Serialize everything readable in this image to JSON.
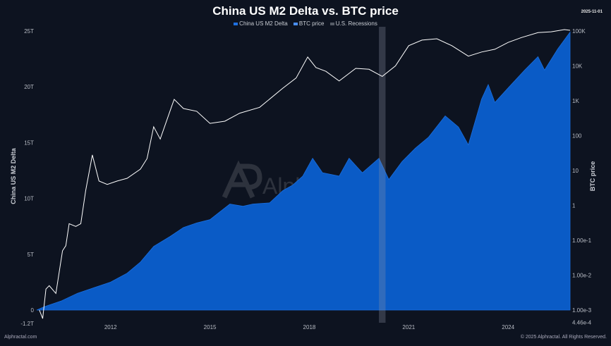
{
  "chart_data": {
    "type": "area",
    "title": "China US M2 Delta vs. BTC price",
    "date_stamp": "2025-11-01",
    "legend": [
      "China US M2 Delta",
      "BTC price",
      "U.S. Recessions"
    ],
    "legend_position": "top-center",
    "ylabel_left": "China US M2 Delta",
    "ylabel_right": "BTC price",
    "x_ticks": [
      "2012",
      "2015",
      "2018",
      "2021",
      "2024"
    ],
    "x_range": [
      2009.77,
      2025.87
    ],
    "y_left_ticks": [
      "25T",
      "20T",
      "15T",
      "10T",
      "5T",
      "0",
      "-1.2T"
    ],
    "y_left_range": [
      -1.2,
      25
    ],
    "y_right_ticks": [
      "100K",
      "10K",
      "1K",
      "100",
      "10",
      "1",
      "1.00e-1",
      "1.00e-2",
      "1.00e-3",
      "4.46e-4"
    ],
    "y_right_range": [
      0.000446,
      100000
    ],
    "y_right_scale": "log",
    "grid": false,
    "colors": {
      "m2": "#0a5bc6",
      "btc": "#ffffff",
      "recession": "#3a404c",
      "background": "#0d1320"
    },
    "recessions": [
      [
        2020.1,
        2020.3
      ]
    ],
    "series": [
      {
        "name": "China US M2 Delta",
        "unit": "T",
        "x": [
          2009.77,
          2010.0,
          2010.5,
          2011.0,
          2011.5,
          2012.0,
          2012.5,
          2012.9,
          2013.3,
          2013.8,
          2014.2,
          2014.6,
          2015.0,
          2015.3,
          2015.6,
          2016.0,
          2016.3,
          2016.8,
          2017.2,
          2017.5,
          2017.8,
          2018.1,
          2018.4,
          2018.9,
          2019.2,
          2019.6,
          2020.1,
          2020.4,
          2020.8,
          2021.2,
          2021.6,
          2022.1,
          2022.5,
          2022.8,
          2023.2,
          2023.4,
          2023.6,
          2024.0,
          2024.5,
          2024.9,
          2025.1,
          2025.5,
          2025.87
        ],
        "values": [
          0,
          0.3,
          0.8,
          1.5,
          2.0,
          2.5,
          3.3,
          4.3,
          5.7,
          6.6,
          7.4,
          7.8,
          8.1,
          8.8,
          9.5,
          9.3,
          9.5,
          9.6,
          10.7,
          11.2,
          12.0,
          13.6,
          12.3,
          12.0,
          13.6,
          12.3,
          13.6,
          11.7,
          13.3,
          14.5,
          15.5,
          17.4,
          16.4,
          14.8,
          18.9,
          20.2,
          18.6,
          19.9,
          21.5,
          22.7,
          21.5,
          23.4,
          24.9
        ]
      },
      {
        "name": "BTC price",
        "unit": "USD",
        "x": [
          2009.85,
          2009.95,
          2010.05,
          2010.15,
          2010.35,
          2010.55,
          2010.65,
          2010.75,
          2010.95,
          2011.1,
          2011.25,
          2011.45,
          2011.65,
          2011.9,
          2012.2,
          2012.5,
          2012.9,
          2013.1,
          2013.3,
          2013.5,
          2013.85,
          2013.92,
          2014.2,
          2014.6,
          2015.0,
          2015.45,
          2015.9,
          2016.5,
          2017.2,
          2017.6,
          2017.95,
          2018.2,
          2018.5,
          2018.9,
          2019.4,
          2019.8,
          2020.2,
          2020.6,
          2021.0,
          2021.4,
          2021.85,
          2022.3,
          2022.8,
          2023.2,
          2023.6,
          2024.0,
          2024.4,
          2024.9,
          2025.3,
          2025.7,
          2025.87
        ],
        "values": [
          0.001,
          0.00057,
          0.004,
          0.005,
          0.003,
          0.05,
          0.07,
          0.3,
          0.25,
          0.3,
          2.7,
          28,
          5,
          4,
          5,
          6,
          11,
          22,
          180,
          80,
          720,
          1100,
          600,
          500,
          225,
          260,
          440,
          650,
          2300,
          4500,
          18000,
          9000,
          7000,
          3700,
          8500,
          8000,
          5000,
          10000,
          38000,
          55000,
          60000,
          38000,
          19000,
          25000,
          30000,
          47000,
          65000,
          90000,
          95000,
          110000,
          105000
        ]
      }
    ],
    "watermark": "Alphractal"
  },
  "footer": {
    "left": "Alphractal.com",
    "right": "© 2025 Alphractal. All Rights Reserved."
  }
}
